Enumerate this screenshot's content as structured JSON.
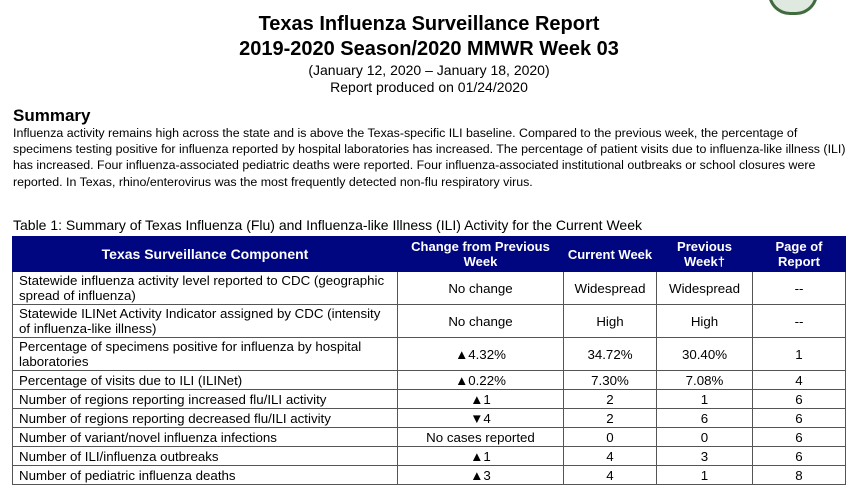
{
  "report": {
    "title": "Texas Influenza Surveillance Report",
    "subtitle": "2019-2020 Season/2020 MMWR Week 03",
    "date_range": "(January 12, 2020 – January 18, 2020)",
    "produced": "Report produced on 01/24/2020"
  },
  "summary": {
    "heading": "Summary",
    "text": "Influenza activity remains high across the state and is above the Texas-specific ILI baseline. Compared to the previous week, the percentage of specimens testing positive for influenza reported by hospital laboratories has increased. The percentage of patient visits due to influenza-like illness (ILI) has increased. Four influenza-associated pediatric deaths were reported. Four influenza-associated institutional outbreaks or school closures were reported.  In Texas, rhino/enterovirus was the most frequently detected non-flu respiratory virus."
  },
  "table": {
    "caption": "Table 1: Summary of Texas Influenza (Flu) and Influenza-like Illness (ILI) Activity for the Current Week",
    "headers": [
      "Texas Surveillance Component",
      "Change from Previous Week",
      "Current Week",
      "Previous Week†",
      "Page of Report"
    ],
    "rows": [
      {
        "component": "Statewide influenza activity level reported to CDC (geographic spread of influenza)",
        "change": "No change",
        "current": "Widespread",
        "previous": "Widespread",
        "page": "--"
      },
      {
        "component": "Statewide ILINet Activity Indicator assigned by CDC (intensity of influenza-like illness)",
        "change": "No change",
        "current": "High",
        "previous": "High",
        "page": "--"
      },
      {
        "component": "Percentage of specimens positive for influenza by hospital laboratories",
        "change": "▲4.32%",
        "current": "34.72%",
        "previous": "30.40%",
        "page": "1"
      },
      {
        "component": "Percentage of visits due to ILI (ILINet)",
        "change": "▲0.22%",
        "current": "7.30%",
        "previous": "7.08%",
        "page": "4"
      },
      {
        "component": "Number of regions reporting increased flu/ILI activity",
        "change": "▲1",
        "current": "2",
        "previous": "1",
        "page": "6"
      },
      {
        "component": "Number of regions reporting decreased flu/ILI activity",
        "change": "▼4",
        "current": "2",
        "previous": "6",
        "page": "6"
      },
      {
        "component": "Number of variant/novel influenza infections",
        "change": "No cases reported",
        "current": "0",
        "previous": "0",
        "page": "6"
      },
      {
        "component": "Number of ILI/influenza outbreaks",
        "change": "▲1",
        "current": "4",
        "previous": "3",
        "page": "6"
      },
      {
        "component": "Number of pediatric influenza deaths",
        "change": "▲3",
        "current": "4",
        "previous": "1",
        "page": "8"
      }
    ]
  }
}
